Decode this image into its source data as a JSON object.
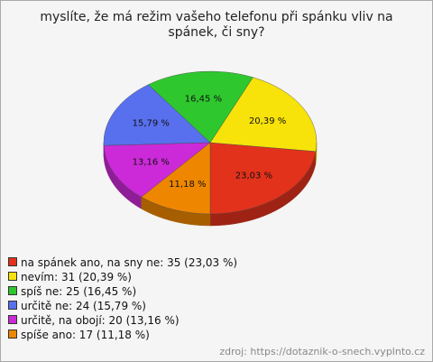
{
  "chart_data": {
    "type": "pie",
    "title": "myslíte, že má režim vašeho telefonu při spánku vliv na spánek, či sny?",
    "categories": [
      "na spánek ano, na sny ne: 35 (23,03 %)",
      "nevím: 31 (20,39 %)",
      "spíš ne: 25 (16,45 %)",
      "určitě ne: 24 (15,79 %)",
      "určitě, na obojí: 20 (13,16 %)",
      "spíše ano: 17 (11,18 %)"
    ],
    "values": [
      23.03,
      20.39,
      16.45,
      15.79,
      13.16,
      11.18
    ],
    "value_labels": [
      "23,03 %",
      "20,39 %",
      "16,45 %",
      "15,79 %",
      "13,16 %",
      "11,18 %"
    ],
    "colors": [
      "#e2321c",
      "#f7e20a",
      "#2ec82e",
      "#5870ee",
      "#cc2ad8",
      "#ef8600"
    ],
    "source": "zdroj: https://dotaznik-o-snech.vyplnto.cz"
  }
}
